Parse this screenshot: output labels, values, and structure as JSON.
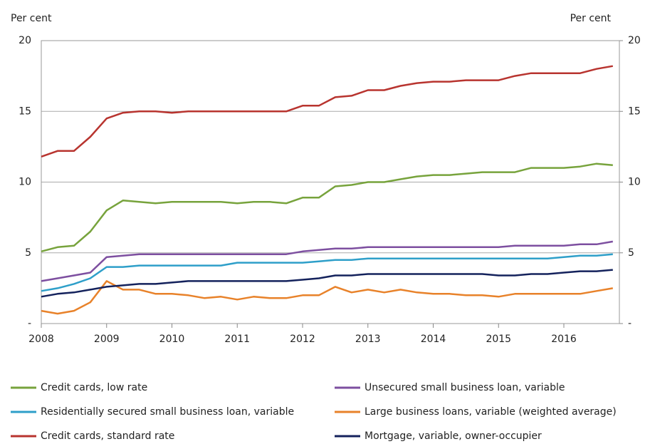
{
  "chart_data": {
    "type": "line",
    "ylabel": "Per cent",
    "y2label": "Per cent",
    "x": [
      2008,
      2008.25,
      2008.5,
      2008.75,
      2009,
      2009.25,
      2009.5,
      2009.75,
      2010,
      2010.25,
      2010.5,
      2010.75,
      2011,
      2011.25,
      2011.5,
      2011.75,
      2012,
      2012.25,
      2012.5,
      2012.75,
      2013,
      2013.25,
      2013.5,
      2013.75,
      2014,
      2014.25,
      2014.5,
      2014.75,
      2015,
      2015.25,
      2015.5,
      2015.75,
      2016,
      2016.25,
      2016.5,
      2016.75
    ],
    "xlim": [
      2008,
      2016.85
    ],
    "xticks": [
      2008,
      2009,
      2010,
      2011,
      2012,
      2013,
      2014,
      2015,
      2016
    ],
    "ylim": [
      0,
      20
    ],
    "yticks": [
      {
        "value": 0,
        "label": "-"
      },
      5,
      10,
      15,
      20
    ],
    "y2lim": [
      0,
      20
    ],
    "y2ticks": [
      {
        "value": 0,
        "label": "-"
      },
      5,
      10,
      15,
      20
    ],
    "grid": true,
    "legend": "bottom",
    "series": [
      {
        "name": "Credit cards, low rate",
        "color": "#77a33c",
        "values": [
          5.1,
          5.4,
          5.5,
          6.5,
          8.0,
          8.7,
          8.6,
          8.5,
          8.6,
          8.6,
          8.6,
          8.6,
          8.5,
          8.6,
          8.6,
          8.5,
          8.9,
          8.9,
          9.7,
          9.8,
          10.0,
          10.0,
          10.2,
          10.4,
          10.5,
          10.5,
          10.6,
          10.7,
          10.7,
          10.7,
          11.0,
          11.0,
          11.0,
          11.1,
          11.3,
          11.2
        ]
      },
      {
        "name": "Unsecured small business loan, variable",
        "color": "#7d4fa0",
        "values": [
          3.0,
          3.2,
          3.4,
          3.6,
          4.7,
          4.8,
          4.9,
          4.9,
          4.9,
          4.9,
          4.9,
          4.9,
          4.9,
          4.9,
          4.9,
          4.9,
          5.1,
          5.2,
          5.3,
          5.3,
          5.4,
          5.4,
          5.4,
          5.4,
          5.4,
          5.4,
          5.4,
          5.4,
          5.4,
          5.5,
          5.5,
          5.5,
          5.5,
          5.6,
          5.6,
          5.8
        ]
      },
      {
        "name": "Residentially secured small business loan, variable",
        "color": "#2e9fc9",
        "values": [
          2.3,
          2.5,
          2.8,
          3.2,
          4.0,
          4.0,
          4.1,
          4.1,
          4.1,
          4.1,
          4.1,
          4.1,
          4.3,
          4.3,
          4.3,
          4.3,
          4.3,
          4.4,
          4.5,
          4.5,
          4.6,
          4.6,
          4.6,
          4.6,
          4.6,
          4.6,
          4.6,
          4.6,
          4.6,
          4.6,
          4.6,
          4.6,
          4.7,
          4.8,
          4.8,
          4.9
        ]
      },
      {
        "name": "Large business loans, variable (weighted average)",
        "color": "#e8822a",
        "values": [
          0.9,
          0.7,
          0.9,
          1.5,
          3.0,
          2.4,
          2.4,
          2.1,
          2.1,
          2.0,
          1.8,
          1.9,
          1.7,
          1.9,
          1.8,
          1.8,
          2.0,
          2.0,
          2.6,
          2.2,
          2.4,
          2.2,
          2.4,
          2.2,
          2.1,
          2.1,
          2.0,
          2.0,
          1.9,
          2.1,
          2.1,
          2.1,
          2.1,
          2.1,
          2.3,
          2.5
        ]
      },
      {
        "name": "Credit cards, standard rate",
        "color": "#b8342f",
        "values": [
          11.8,
          12.2,
          12.2,
          13.2,
          14.5,
          14.9,
          15.0,
          15.0,
          14.9,
          15.0,
          15.0,
          15.0,
          15.0,
          15.0,
          15.0,
          15.0,
          15.4,
          15.4,
          16.0,
          16.1,
          16.5,
          16.5,
          16.8,
          17.0,
          17.1,
          17.1,
          17.2,
          17.2,
          17.2,
          17.5,
          17.7,
          17.7,
          17.7,
          17.7,
          18.0,
          18.2
        ]
      },
      {
        "name": "Mortgage, variable, owner-occupier",
        "color": "#14225c",
        "values": [
          1.9,
          2.1,
          2.2,
          2.4,
          2.6,
          2.7,
          2.8,
          2.8,
          2.9,
          3.0,
          3.0,
          3.0,
          3.0,
          3.0,
          3.0,
          3.0,
          3.1,
          3.2,
          3.4,
          3.4,
          3.5,
          3.5,
          3.5,
          3.5,
          3.5,
          3.5,
          3.5,
          3.5,
          3.4,
          3.4,
          3.5,
          3.5,
          3.6,
          3.7,
          3.7,
          3.8
        ]
      }
    ]
  }
}
